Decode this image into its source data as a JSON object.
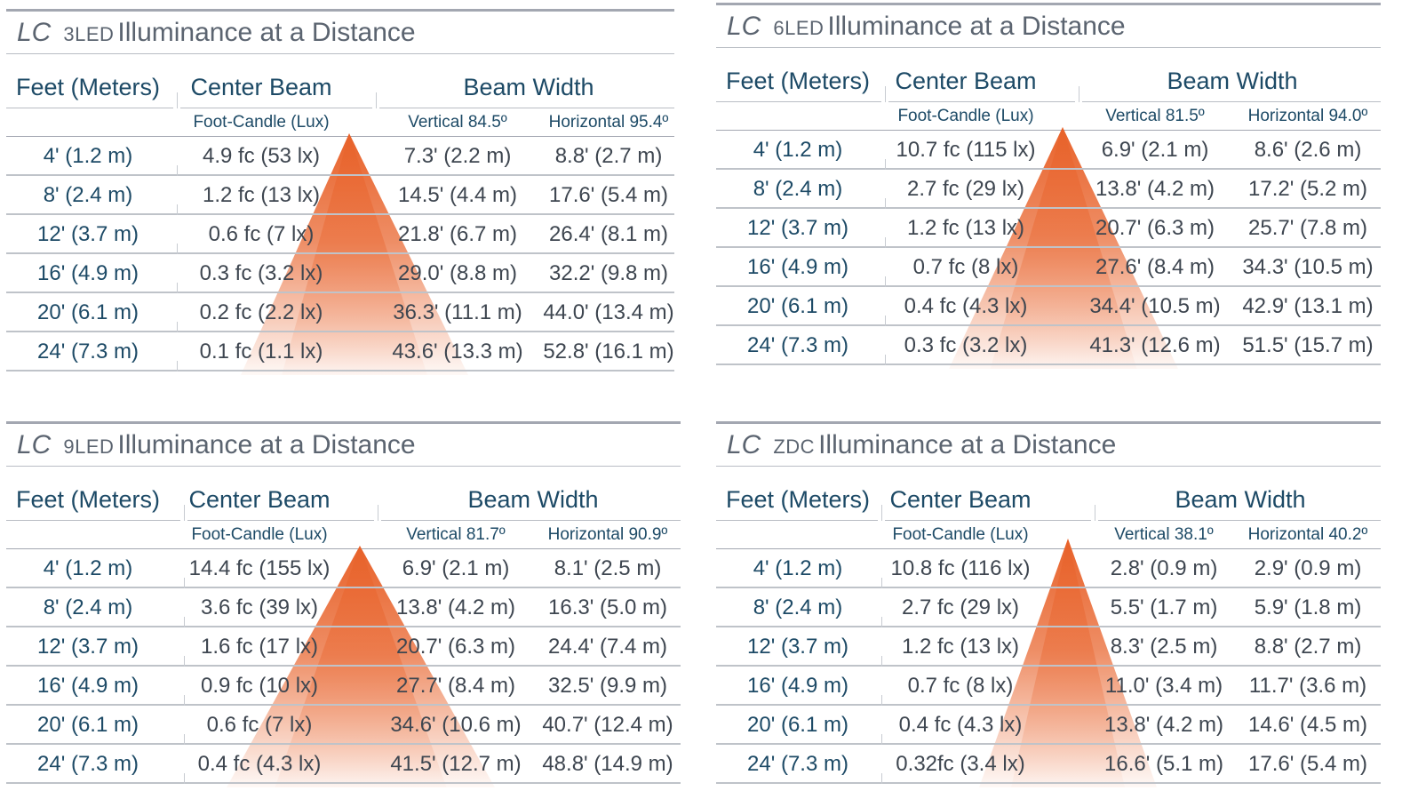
{
  "colors": {
    "accent": "#e8622a",
    "heading": "#1d4a66",
    "title": "#5b6470",
    "rule": "#a3a7b1"
  },
  "panels": [
    {
      "title": {
        "lc": "LC",
        "model": "3LED",
        "text": "Illuminance at a Distance"
      },
      "headers": {
        "feet": "Feet (Meters)",
        "center": "Center Beam",
        "beam": "Beam Width"
      },
      "subheaders": {
        "center": "Foot-Candle (Lux)",
        "vertical": "Vertical 84.5º",
        "horizontal": "Horizontal 95.4º"
      },
      "rows": [
        [
          "4' (1.2 m)",
          "4.9 fc (53 lx)",
          "7.3' (2.2 m)",
          "8.8' (2.7 m)"
        ],
        [
          "8' (2.4 m)",
          "1.2 fc (13 lx)",
          "14.5' (4.4 m)",
          "17.6' (5.4 m)"
        ],
        [
          "12' (3.7 m)",
          "0.6 fc (7 lx)",
          "21.8' (6.7 m)",
          "26.4' (8.1 m)"
        ],
        [
          "16' (4.9 m)",
          "0.3 fc (3.2 lx)",
          "29.0' (8.8 m)",
          "32.2' (9.8 m)"
        ],
        [
          "20' (6.1 m)",
          "0.2 fc (2.2 lx)",
          "36.3' (11.1 m)",
          "44.0' (13.4 m)"
        ],
        [
          "24' (7.3 m)",
          "0.1 fc (1.1 lx)",
          "43.6' (13.3 m)",
          "52.8' (16.1 m)"
        ]
      ]
    },
    {
      "title": {
        "lc": "LC",
        "model": "6LED",
        "text": "Illuminance at a Distance"
      },
      "headers": {
        "feet": "Feet (Meters)",
        "center": "Center Beam",
        "beam": "Beam Width"
      },
      "subheaders": {
        "center": "Foot-Candle (Lux)",
        "vertical": "Vertical 81.5º",
        "horizontal": "Horizontal 94.0º"
      },
      "rows": [
        [
          "4' (1.2 m)",
          "10.7 fc (115 lx)",
          "6.9' (2.1 m)",
          "8.6' (2.6 m)"
        ],
        [
          "8' (2.4 m)",
          "2.7 fc (29 lx)",
          "13.8' (4.2 m)",
          "17.2' (5.2 m)"
        ],
        [
          "12' (3.7 m)",
          "1.2 fc (13 lx)",
          "20.7' (6.3 m)",
          "25.7' (7.8 m)"
        ],
        [
          "16' (4.9 m)",
          "0.7 fc (8 lx)",
          "27.6' (8.4 m)",
          "34.3' (10.5 m)"
        ],
        [
          "20' (6.1 m)",
          "0.4 fc (4.3 lx)",
          "34.4' (10.5 m)",
          "42.9' (13.1 m)"
        ],
        [
          "24' (7.3 m)",
          "0.3 fc (3.2 lx)",
          "41.3' (12.6 m)",
          "51.5' (15.7 m)"
        ]
      ]
    },
    {
      "title": {
        "lc": "LC",
        "model": "9LED",
        "text": "Illuminance at a Distance"
      },
      "headers": {
        "feet": "Feet (Meters)",
        "center": "Center Beam",
        "beam": "Beam Width"
      },
      "subheaders": {
        "center": "Foot-Candle (Lux)",
        "vertical": "Vertical 81.7º",
        "horizontal": "Horizontal 90.9º"
      },
      "rows": [
        [
          "4' (1.2 m)",
          "14.4 fc (155 lx)",
          "6.9' (2.1 m)",
          "8.1' (2.5 m)"
        ],
        [
          "8' (2.4 m)",
          "3.6 fc (39 lx)",
          "13.8' (4.2 m)",
          "16.3' (5.0 m)"
        ],
        [
          "12' (3.7 m)",
          "1.6 fc (17 lx)",
          "20.7' (6.3 m)",
          "24.4' (7.4 m)"
        ],
        [
          "16' (4.9 m)",
          "0.9 fc (10 lx)",
          "27.7' (8.4 m)",
          "32.5' (9.9 m)"
        ],
        [
          "20' (6.1 m)",
          "0.6 fc (7 lx)",
          "34.6' (10.6 m)",
          "40.7' (12.4 m)"
        ],
        [
          "24' (7.3 m)",
          "0.4 fc (4.3 lx)",
          "41.5' (12.7 m)",
          "48.8' (14.9 m)"
        ]
      ]
    },
    {
      "title": {
        "lc": "LC",
        "model": "ZDC",
        "text": "Illuminance at a Distance"
      },
      "headers": {
        "feet": "Feet (Meters)",
        "center": "Center Beam",
        "beam": "Beam Width"
      },
      "subheaders": {
        "center": "Foot-Candle (Lux)",
        "vertical": "Vertical 38.1º",
        "horizontal": "Horizontal 40.2º"
      },
      "rows": [
        [
          "4' (1.2 m)",
          "10.8 fc (116 lx)",
          "2.8' (0.9 m)",
          "2.9' (0.9 m)"
        ],
        [
          "8' (2.4 m)",
          "2.7 fc (29 lx)",
          "5.5' (1.7 m)",
          "5.9' (1.8 m)"
        ],
        [
          "12' (3.7 m)",
          "1.2 fc (13 lx)",
          "8.3' (2.5 m)",
          "8.8' (2.7 m)"
        ],
        [
          "16' (4.9 m)",
          "0.7 fc (8 lx)",
          "11.0' (3.4 m)",
          "11.7' (3.6 m)"
        ],
        [
          "20' (6.1 m)",
          "0.4 fc (4.3 lx)",
          "13.8' (4.2 m)",
          "14.6' (4.5 m)"
        ],
        [
          "24' (7.3 m)",
          "0.32fc (3.4 lx)",
          "16.6' (5.1 m)",
          "17.6' (5.4 m)"
        ]
      ]
    }
  ]
}
